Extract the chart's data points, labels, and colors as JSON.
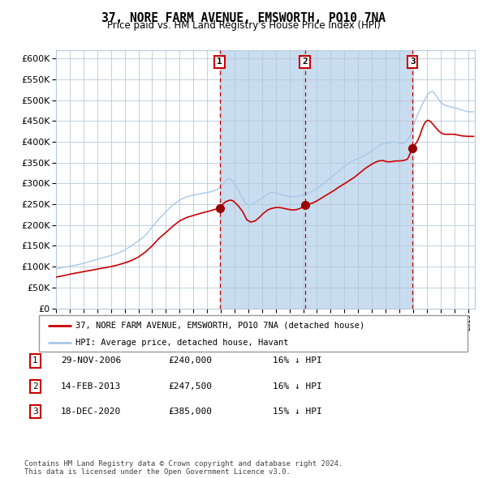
{
  "title": "37, NORE FARM AVENUE, EMSWORTH, PO10 7NA",
  "subtitle": "Price paid vs. HM Land Registry's House Price Index (HPI)",
  "footer": "Contains HM Land Registry data © Crown copyright and database right 2024.\nThis data is licensed under the Open Government Licence v3.0.",
  "legend_line1": "37, NORE FARM AVENUE, EMSWORTH, PO10 7NA (detached house)",
  "legend_line2": "HPI: Average price, detached house, Havant",
  "hpi_color": "#a8c8e8",
  "price_color": "#cc0000",
  "plot_bg_color": "#ffffff",
  "grid_color": "#b8c8d8",
  "marker_color": "#990000",
  "vline_color": "#cc0000",
  "shade_color": "#c8ddf0",
  "ylim": [
    0,
    620000
  ],
  "yticks": [
    0,
    50000,
    100000,
    150000,
    200000,
    250000,
    300000,
    350000,
    400000,
    450000,
    500000,
    550000,
    600000
  ],
  "xlim_start": 1995.0,
  "xlim_end": 2025.5,
  "purchase_years": [
    2006.914,
    2013.123,
    2020.962
  ],
  "purchase_prices": [
    240000,
    247500,
    385000
  ],
  "purchase_labels": [
    "1",
    "2",
    "3"
  ],
  "purchase_info": [
    {
      "num": "1",
      "date": "29-NOV-2006",
      "price": "£240,000",
      "hpi": "16% ↓ HPI"
    },
    {
      "num": "2",
      "date": "14-FEB-2013",
      "price": "£247,500",
      "hpi": "16% ↓ HPI"
    },
    {
      "num": "3",
      "date": "18-DEC-2020",
      "price": "£385,000",
      "hpi": "15% ↓ HPI"
    }
  ],
  "hpi_control": [
    [
      1995.0,
      95000
    ],
    [
      1995.5,
      98000
    ],
    [
      1996.0,
      101000
    ],
    [
      1996.5,
      104000
    ],
    [
      1997.0,
      108000
    ],
    [
      1997.5,
      113000
    ],
    [
      1998.0,
      118000
    ],
    [
      1998.5,
      122000
    ],
    [
      1999.0,
      127000
    ],
    [
      1999.5,
      132000
    ],
    [
      2000.0,
      140000
    ],
    [
      2000.5,
      150000
    ],
    [
      2001.0,
      162000
    ],
    [
      2001.5,
      175000
    ],
    [
      2002.0,
      195000
    ],
    [
      2002.5,
      215000
    ],
    [
      2003.0,
      232000
    ],
    [
      2003.5,
      248000
    ],
    [
      2004.0,
      260000
    ],
    [
      2004.5,
      268000
    ],
    [
      2005.0,
      272000
    ],
    [
      2005.5,
      275000
    ],
    [
      2006.0,
      278000
    ],
    [
      2006.5,
      282000
    ],
    [
      2007.0,
      290000
    ],
    [
      2007.3,
      305000
    ],
    [
      2007.6,
      312000
    ],
    [
      2007.9,
      305000
    ],
    [
      2008.2,
      290000
    ],
    [
      2008.5,
      270000
    ],
    [
      2008.8,
      252000
    ],
    [
      2009.1,
      248000
    ],
    [
      2009.4,
      252000
    ],
    [
      2009.7,
      258000
    ],
    [
      2010.0,
      265000
    ],
    [
      2010.3,
      272000
    ],
    [
      2010.6,
      278000
    ],
    [
      2010.9,
      278000
    ],
    [
      2011.2,
      275000
    ],
    [
      2011.5,
      272000
    ],
    [
      2011.8,
      270000
    ],
    [
      2012.1,
      268000
    ],
    [
      2012.4,
      268000
    ],
    [
      2012.7,
      270000
    ],
    [
      2013.0,
      272000
    ],
    [
      2013.3,
      276000
    ],
    [
      2013.6,
      280000
    ],
    [
      2013.9,
      285000
    ],
    [
      2014.2,
      292000
    ],
    [
      2014.5,
      300000
    ],
    [
      2014.8,
      308000
    ],
    [
      2015.1,
      316000
    ],
    [
      2015.4,
      325000
    ],
    [
      2015.7,
      333000
    ],
    [
      2016.0,
      340000
    ],
    [
      2016.3,
      348000
    ],
    [
      2016.6,
      355000
    ],
    [
      2016.9,
      358000
    ],
    [
      2017.2,
      362000
    ],
    [
      2017.5,
      368000
    ],
    [
      2017.8,
      374000
    ],
    [
      2018.1,
      380000
    ],
    [
      2018.4,
      388000
    ],
    [
      2018.7,
      395000
    ],
    [
      2019.0,
      395000
    ],
    [
      2019.3,
      398000
    ],
    [
      2019.6,
      400000
    ],
    [
      2019.9,
      398000
    ],
    [
      2020.2,
      395000
    ],
    [
      2020.5,
      400000
    ],
    [
      2020.8,
      415000
    ],
    [
      2021.0,
      435000
    ],
    [
      2021.2,
      455000
    ],
    [
      2021.4,
      470000
    ],
    [
      2021.6,
      485000
    ],
    [
      2021.8,
      498000
    ],
    [
      2022.0,
      510000
    ],
    [
      2022.2,
      518000
    ],
    [
      2022.4,
      522000
    ],
    [
      2022.6,
      515000
    ],
    [
      2022.8,
      505000
    ],
    [
      2023.0,
      495000
    ],
    [
      2023.2,
      490000
    ],
    [
      2023.4,
      487000
    ],
    [
      2023.6,
      485000
    ],
    [
      2023.8,
      483000
    ],
    [
      2024.0,
      482000
    ],
    [
      2024.2,
      480000
    ],
    [
      2024.4,
      478000
    ],
    [
      2024.6,
      476000
    ],
    [
      2024.8,
      474000
    ],
    [
      2025.0,
      472000
    ]
  ],
  "price_control": [
    [
      1995.0,
      75000
    ],
    [
      1995.5,
      78000
    ],
    [
      1996.0,
      82000
    ],
    [
      1996.5,
      85000
    ],
    [
      1997.0,
      88000
    ],
    [
      1997.5,
      91000
    ],
    [
      1998.0,
      94000
    ],
    [
      1998.5,
      97000
    ],
    [
      1999.0,
      100000
    ],
    [
      1999.5,
      104000
    ],
    [
      2000.0,
      109000
    ],
    [
      2000.5,
      115000
    ],
    [
      2001.0,
      123000
    ],
    [
      2001.5,
      135000
    ],
    [
      2002.0,
      150000
    ],
    [
      2002.5,
      168000
    ],
    [
      2003.0,
      182000
    ],
    [
      2003.5,
      197000
    ],
    [
      2004.0,
      210000
    ],
    [
      2004.5,
      218000
    ],
    [
      2005.0,
      223000
    ],
    [
      2005.5,
      228000
    ],
    [
      2006.0,
      232000
    ],
    [
      2006.5,
      237000
    ],
    [
      2006.914,
      240000
    ],
    [
      2007.1,
      248000
    ],
    [
      2007.3,
      255000
    ],
    [
      2007.5,
      258000
    ],
    [
      2007.7,
      260000
    ],
    [
      2007.9,
      258000
    ],
    [
      2008.1,
      252000
    ],
    [
      2008.3,
      245000
    ],
    [
      2008.6,
      232000
    ],
    [
      2008.9,
      212000
    ],
    [
      2009.2,
      207000
    ],
    [
      2009.5,
      210000
    ],
    [
      2009.8,
      218000
    ],
    [
      2010.1,
      228000
    ],
    [
      2010.4,
      236000
    ],
    [
      2010.7,
      240000
    ],
    [
      2011.0,
      242000
    ],
    [
      2011.3,
      242000
    ],
    [
      2011.6,
      240000
    ],
    [
      2011.9,
      238000
    ],
    [
      2012.2,
      236000
    ],
    [
      2012.5,
      237000
    ],
    [
      2012.8,
      240000
    ],
    [
      2013.123,
      247500
    ],
    [
      2013.4,
      250000
    ],
    [
      2013.7,
      253000
    ],
    [
      2014.0,
      258000
    ],
    [
      2014.3,
      264000
    ],
    [
      2014.6,
      270000
    ],
    [
      2014.9,
      276000
    ],
    [
      2015.2,
      282000
    ],
    [
      2015.5,
      289000
    ],
    [
      2015.8,
      295000
    ],
    [
      2016.1,
      301000
    ],
    [
      2016.4,
      308000
    ],
    [
      2016.7,
      314000
    ],
    [
      2017.0,
      322000
    ],
    [
      2017.3,
      330000
    ],
    [
      2017.6,
      338000
    ],
    [
      2017.9,
      344000
    ],
    [
      2018.2,
      350000
    ],
    [
      2018.5,
      354000
    ],
    [
      2018.8,
      355000
    ],
    [
      2019.1,
      352000
    ],
    [
      2019.4,
      352000
    ],
    [
      2019.7,
      354000
    ],
    [
      2020.0,
      354000
    ],
    [
      2020.3,
      355000
    ],
    [
      2020.6,
      358000
    ],
    [
      2020.962,
      385000
    ],
    [
      2021.1,
      392000
    ],
    [
      2021.3,
      400000
    ],
    [
      2021.5,
      415000
    ],
    [
      2021.7,
      435000
    ],
    [
      2021.9,
      448000
    ],
    [
      2022.1,
      452000
    ],
    [
      2022.3,
      448000
    ],
    [
      2022.5,
      440000
    ],
    [
      2022.7,
      432000
    ],
    [
      2022.9,
      425000
    ],
    [
      2023.1,
      420000
    ],
    [
      2023.3,
      418000
    ],
    [
      2023.5,
      418000
    ],
    [
      2023.7,
      418000
    ],
    [
      2024.0,
      418000
    ],
    [
      2024.3,
      416000
    ],
    [
      2024.6,
      414000
    ],
    [
      2025.0,
      413000
    ]
  ]
}
